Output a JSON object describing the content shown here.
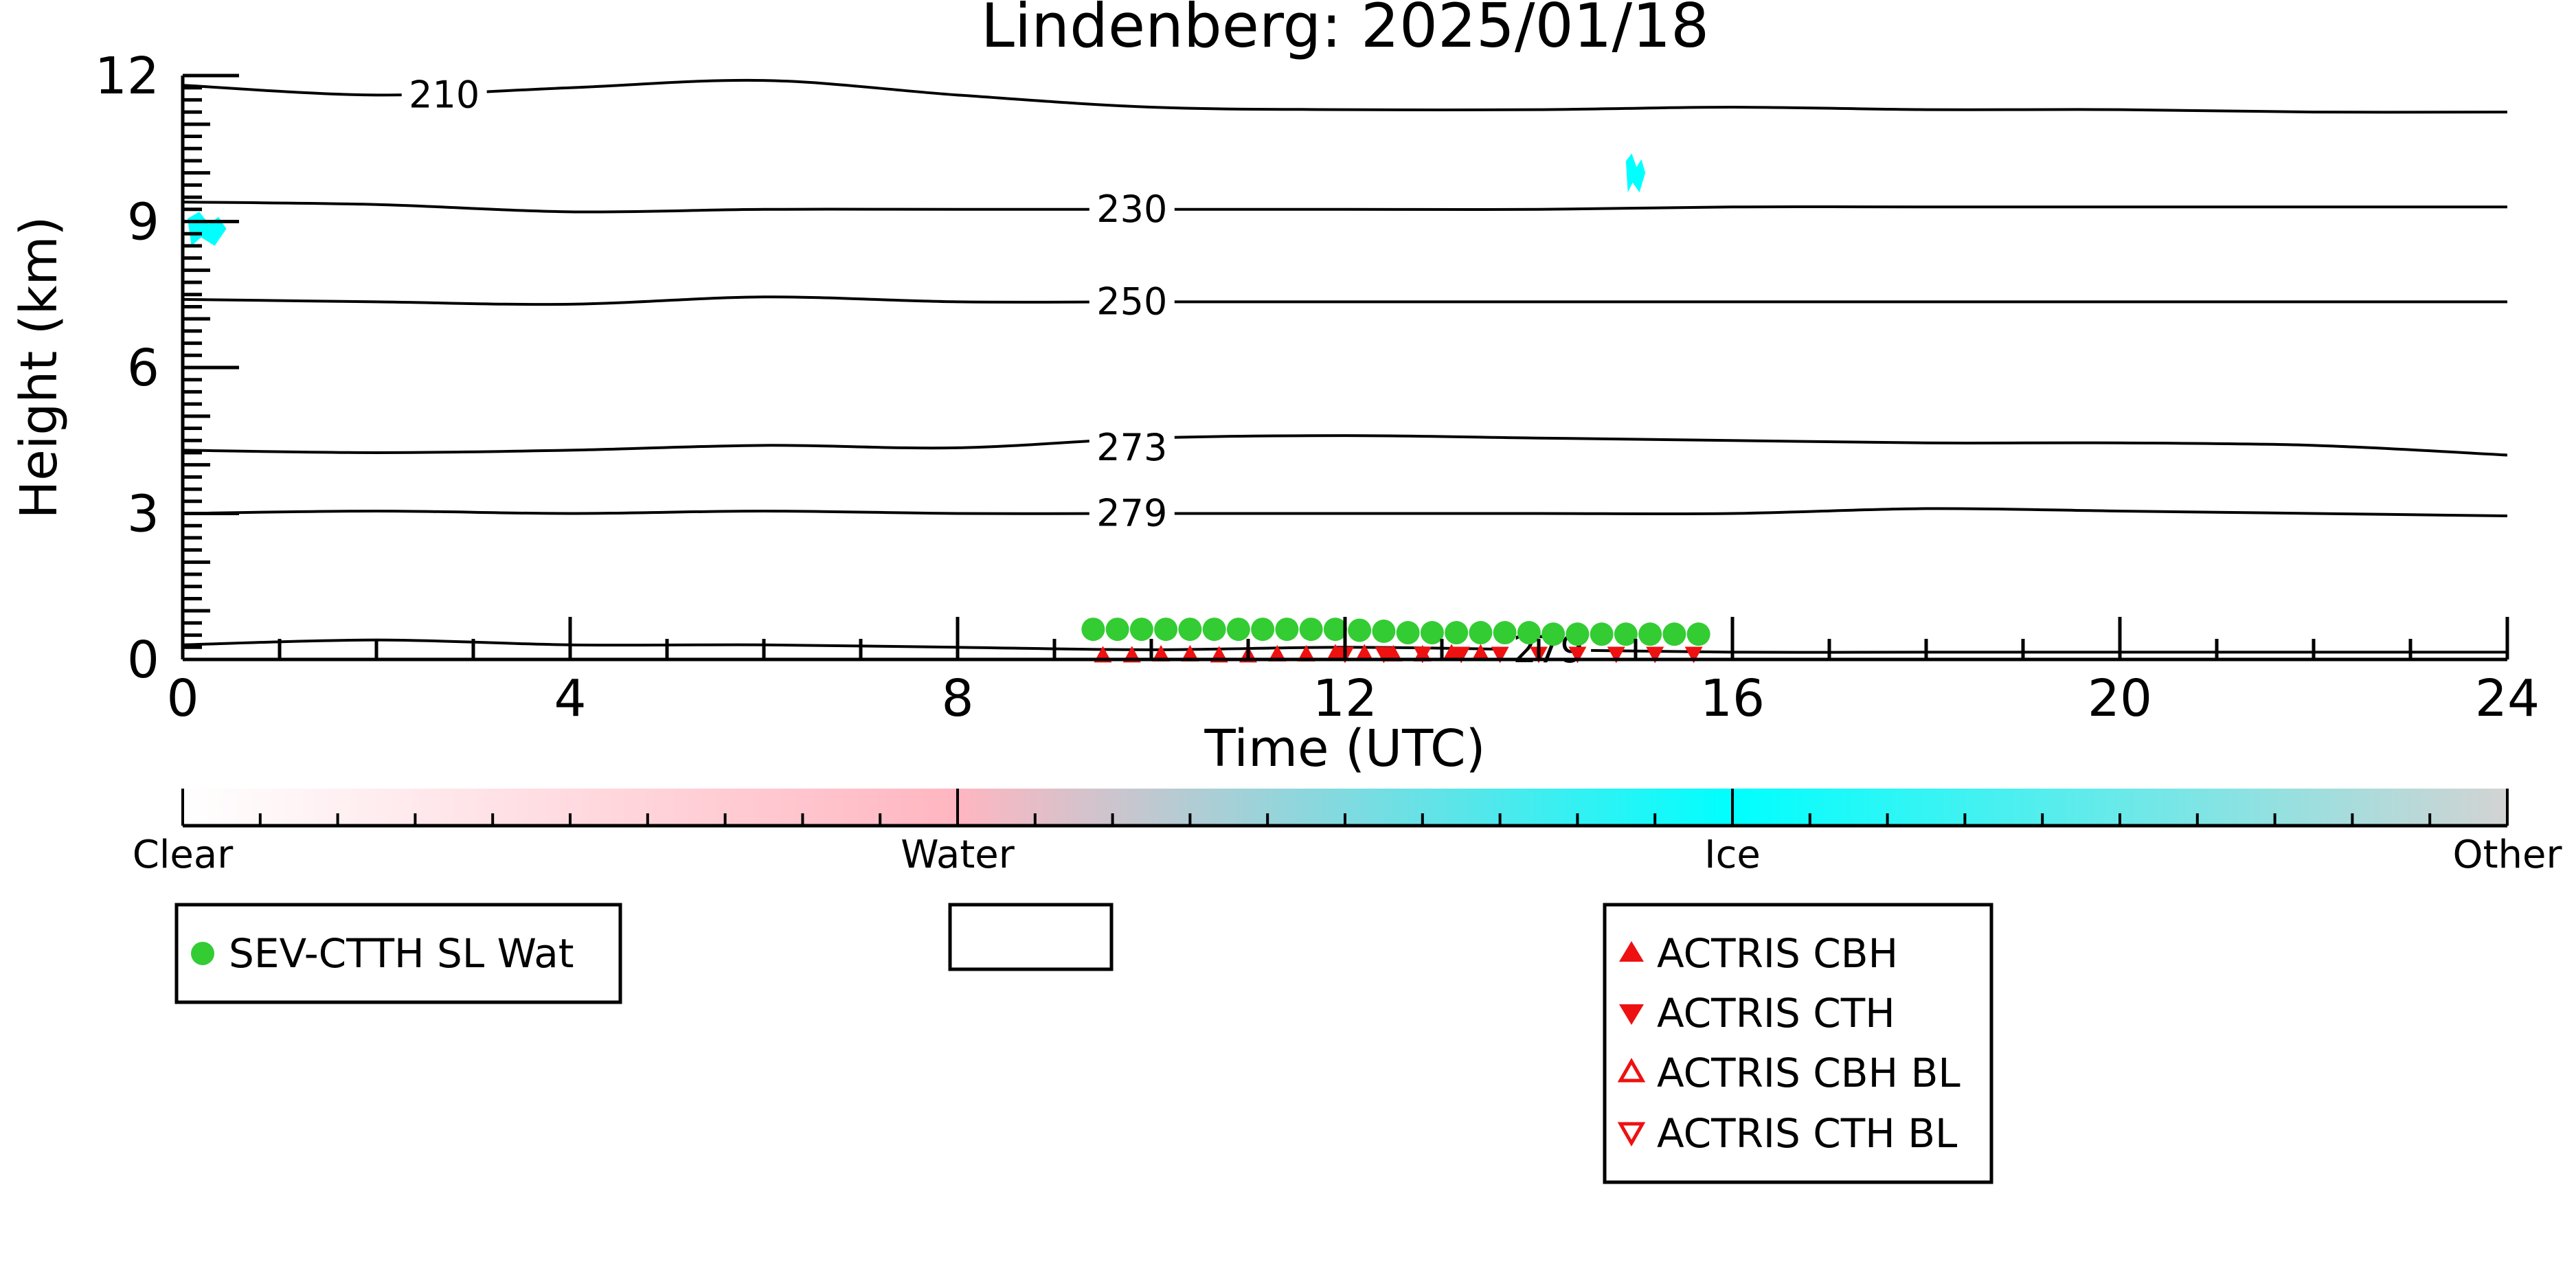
{
  "chart_data": {
    "type": "line",
    "title": "Lindenberg: 2025/01/18",
    "xlabel": "Time (UTC)",
    "ylabel": "Height (km)",
    "xlim": [
      0,
      24
    ],
    "ylim": [
      0,
      12
    ],
    "x_ticks": [
      0,
      4,
      8,
      12,
      16,
      20,
      24
    ],
    "y_ticks": [
      0,
      3,
      6,
      9,
      12
    ],
    "grid": false,
    "contours": [
      {
        "label": "210",
        "label_x": 2.7,
        "label_y": 11.6,
        "x": [
          0,
          2,
          4,
          6,
          8,
          10,
          12,
          14,
          16,
          18,
          20,
          22,
          24
        ],
        "y": [
          11.8,
          11.6,
          11.75,
          11.9,
          11.6,
          11.35,
          11.3,
          11.3,
          11.35,
          11.3,
          11.3,
          11.25,
          11.25
        ]
      },
      {
        "label": "230",
        "label_x": 9.8,
        "label_y": 9.25,
        "x": [
          0,
          2,
          4,
          6,
          8,
          10,
          12,
          14,
          16,
          18,
          20,
          22,
          24
        ],
        "y": [
          9.4,
          9.35,
          9.2,
          9.25,
          9.25,
          9.25,
          9.25,
          9.25,
          9.3,
          9.3,
          9.3,
          9.3,
          9.3
        ]
      },
      {
        "label": "250",
        "label_x": 9.8,
        "label_y": 7.35,
        "x": [
          0,
          2,
          4,
          6,
          8,
          10,
          12,
          14,
          16,
          18,
          20,
          22,
          24
        ],
        "y": [
          7.4,
          7.35,
          7.3,
          7.45,
          7.35,
          7.35,
          7.35,
          7.35,
          7.35,
          7.35,
          7.35,
          7.35,
          7.35
        ]
      },
      {
        "label": "273",
        "label_x": 9.8,
        "label_y": 4.35,
        "x": [
          0,
          2,
          4,
          6,
          8,
          10,
          12,
          14,
          16,
          18,
          20,
          22,
          24
        ],
        "y": [
          4.3,
          4.25,
          4.3,
          4.4,
          4.35,
          4.55,
          4.6,
          4.55,
          4.5,
          4.45,
          4.45,
          4.4,
          4.2
        ]
      },
      {
        "label": "279",
        "label_x": 9.8,
        "label_y": 3.0,
        "x": [
          0,
          2,
          4,
          6,
          8,
          10,
          12,
          14,
          16,
          18,
          20,
          22,
          24
        ],
        "y": [
          3.0,
          3.05,
          3.0,
          3.05,
          3.0,
          3.0,
          3.0,
          3.0,
          3.0,
          3.1,
          3.05,
          3.0,
          2.95
        ]
      },
      {
        "label": "279",
        "label_x": 14.1,
        "label_y": 0.2,
        "x": [
          0,
          2,
          4,
          6,
          8,
          10,
          12,
          14,
          16,
          18,
          20,
          22,
          24
        ],
        "y": [
          0.3,
          0.4,
          0.3,
          0.3,
          0.25,
          0.2,
          0.25,
          0.2,
          0.15,
          0.15,
          0.15,
          0.15,
          0.15
        ]
      }
    ],
    "cloud_phase_patches": [
      {
        "phase": "Ice",
        "x": [
          0.05,
          0.45
        ],
        "y": [
          8.5,
          9.2
        ]
      },
      {
        "phase": "Ice",
        "x": [
          14.9,
          15.1
        ],
        "y": [
          9.6,
          10.4
        ]
      }
    ],
    "series": [
      {
        "name": "SEV-CTTH SL Wat",
        "marker": "circle-filled",
        "color": "#33cc33",
        "x": [
          9.4,
          9.65,
          9.9,
          10.15,
          10.4,
          10.65,
          10.9,
          11.15,
          11.4,
          11.65,
          11.9,
          12.15,
          12.4,
          12.65,
          12.9,
          13.15,
          13.4,
          13.65,
          13.9,
          14.15,
          14.4,
          14.65,
          14.9,
          15.15,
          15.4,
          15.65
        ],
        "y": [
          0.62,
          0.62,
          0.62,
          0.62,
          0.62,
          0.62,
          0.62,
          0.62,
          0.62,
          0.62,
          0.62,
          0.6,
          0.58,
          0.55,
          0.55,
          0.55,
          0.55,
          0.55,
          0.55,
          0.52,
          0.52,
          0.52,
          0.52,
          0.52,
          0.52,
          0.52
        ]
      },
      {
        "name": "ACTRIS CBH",
        "marker": "triangle-up-filled",
        "color": "#ee1111",
        "x": [
          9.5,
          9.8,
          10.1,
          10.4,
          10.7,
          11.0,
          11.3,
          11.6,
          11.9,
          12.2,
          12.5,
          12.8,
          13.1,
          13.4
        ],
        "y": [
          0.08,
          0.08,
          0.1,
          0.1,
          0.08,
          0.08,
          0.1,
          0.1,
          0.12,
          0.12,
          0.1,
          0.1,
          0.12,
          0.12
        ]
      },
      {
        "name": "ACTRIS CTH",
        "marker": "triangle-down-filled",
        "color": "#ee1111",
        "x": [
          12.0,
          12.4,
          12.8,
          13.2,
          13.6,
          14.0,
          14.4,
          14.8,
          15.2,
          15.6
        ],
        "y": [
          0.12,
          0.12,
          0.12,
          0.12,
          0.12,
          0.12,
          0.12,
          0.12,
          0.12,
          0.12
        ]
      },
      {
        "name": "ACTRIS CBH BL",
        "marker": "triangle-up-open",
        "color": "#ee1111",
        "x": [],
        "y": []
      },
      {
        "name": "ACTRIS CTH BL",
        "marker": "triangle-down-open",
        "color": "#ee1111",
        "x": [],
        "y": []
      }
    ],
    "colorbar": {
      "labels": [
        "Clear",
        "Water",
        "Ice",
        "Other"
      ],
      "stops": [
        "#ffffff",
        "#ffb6c1",
        "#00ffff",
        "#d3d3d3"
      ]
    },
    "legends": [
      {
        "entries": [
          "SEV-CTTH SL Wat"
        ]
      },
      {
        "entries": []
      },
      {
        "entries": [
          "ACTRIS CBH",
          "ACTRIS CTH",
          "ACTRIS CBH BL",
          "ACTRIS CTH BL"
        ]
      }
    ]
  }
}
